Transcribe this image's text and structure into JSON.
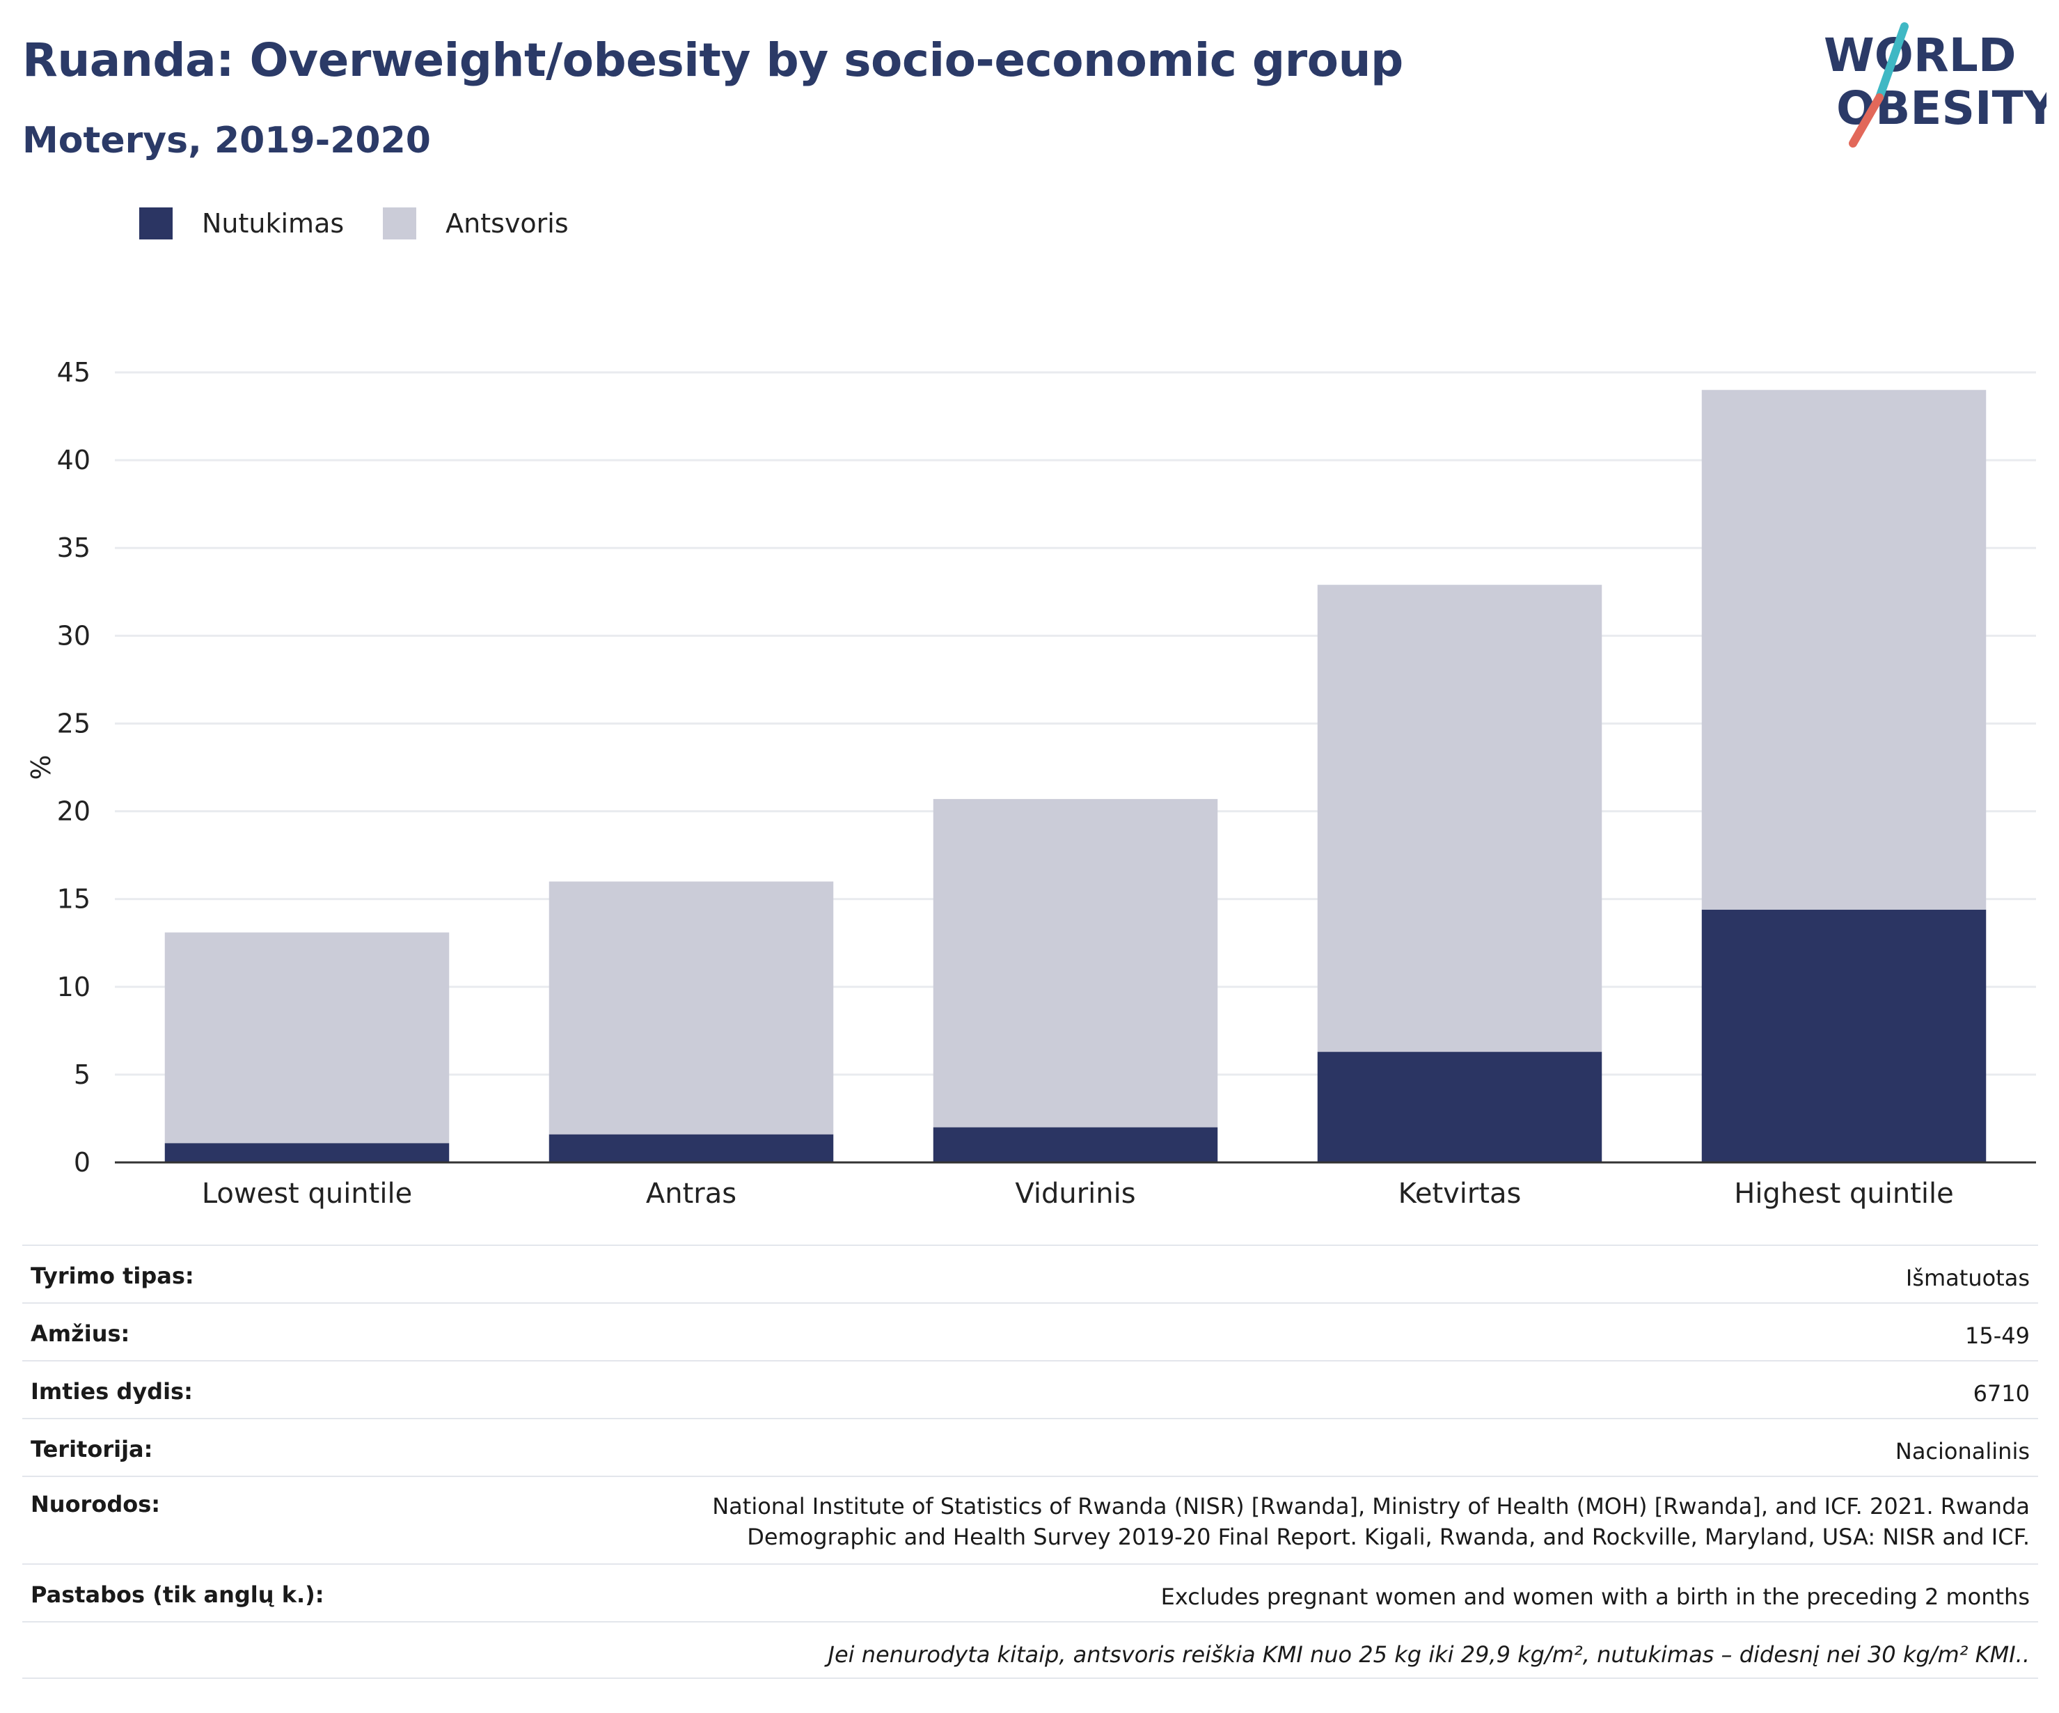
{
  "header": {
    "title": "Ruanda: Overweight/obesity by socio-economic group",
    "subtitle": "Moterys, 2019-2020"
  },
  "logo": {
    "line1": "WORLD",
    "line2": "OBESITY",
    "colors": {
      "text": "#2b3a67",
      "slash_teal": "#3fb8c4",
      "slash_red": "#e2685a"
    }
  },
  "colors": {
    "obesity": "#2b3563",
    "overweight": "#cbccd8",
    "grid": "#e9ebef",
    "axis": "#333333"
  },
  "chart_data": {
    "type": "bar",
    "stacked": true,
    "categories": [
      "Lowest quintile",
      "Antras",
      "Vidurinis",
      "Ketvirtas",
      "Highest quintile"
    ],
    "series": [
      {
        "name": "Nutukimas",
        "values": [
          1.1,
          1.6,
          2.0,
          6.3,
          14.4
        ]
      },
      {
        "name": "Antsvoris",
        "values": [
          12.0,
          14.4,
          18.7,
          26.6,
          29.6
        ]
      }
    ],
    "ylabel": "%",
    "ylim": [
      0,
      45
    ],
    "yticks": [
      0,
      5,
      10,
      15,
      20,
      25,
      30,
      35,
      40,
      45
    ],
    "grid": true,
    "legend_position": "top-left"
  },
  "meta": {
    "rows": [
      {
        "label": "Tyrimo tipas:",
        "value": "Išmatuotas"
      },
      {
        "label": "Amžius:",
        "value": "15-49"
      },
      {
        "label": "Imties dydis:",
        "value": "6710"
      },
      {
        "label": "Teritorija:",
        "value": "Nacionalinis"
      },
      {
        "label": "Nuorodos:",
        "value": "National Institute of Statistics of Rwanda (NISR) [Rwanda], Ministry of Health (MOH) [Rwanda], and ICF. 2021. Rwanda Demographic and Health Survey 2019-20 Final Report. Kigali, Rwanda, and Rockville, Maryland, USA: NISR and ICF."
      },
      {
        "label": "Pastabos (tik anglų k.):",
        "value": "Excludes pregnant women and women with a birth in the preceding 2 months"
      }
    ],
    "footnote": "Jei nenurodyta kitaip, antsvoris reiškia KMI nuo 25 kg iki 29,9 kg/m², nutukimas – didesnį nei 30 kg/m² KMI.."
  }
}
